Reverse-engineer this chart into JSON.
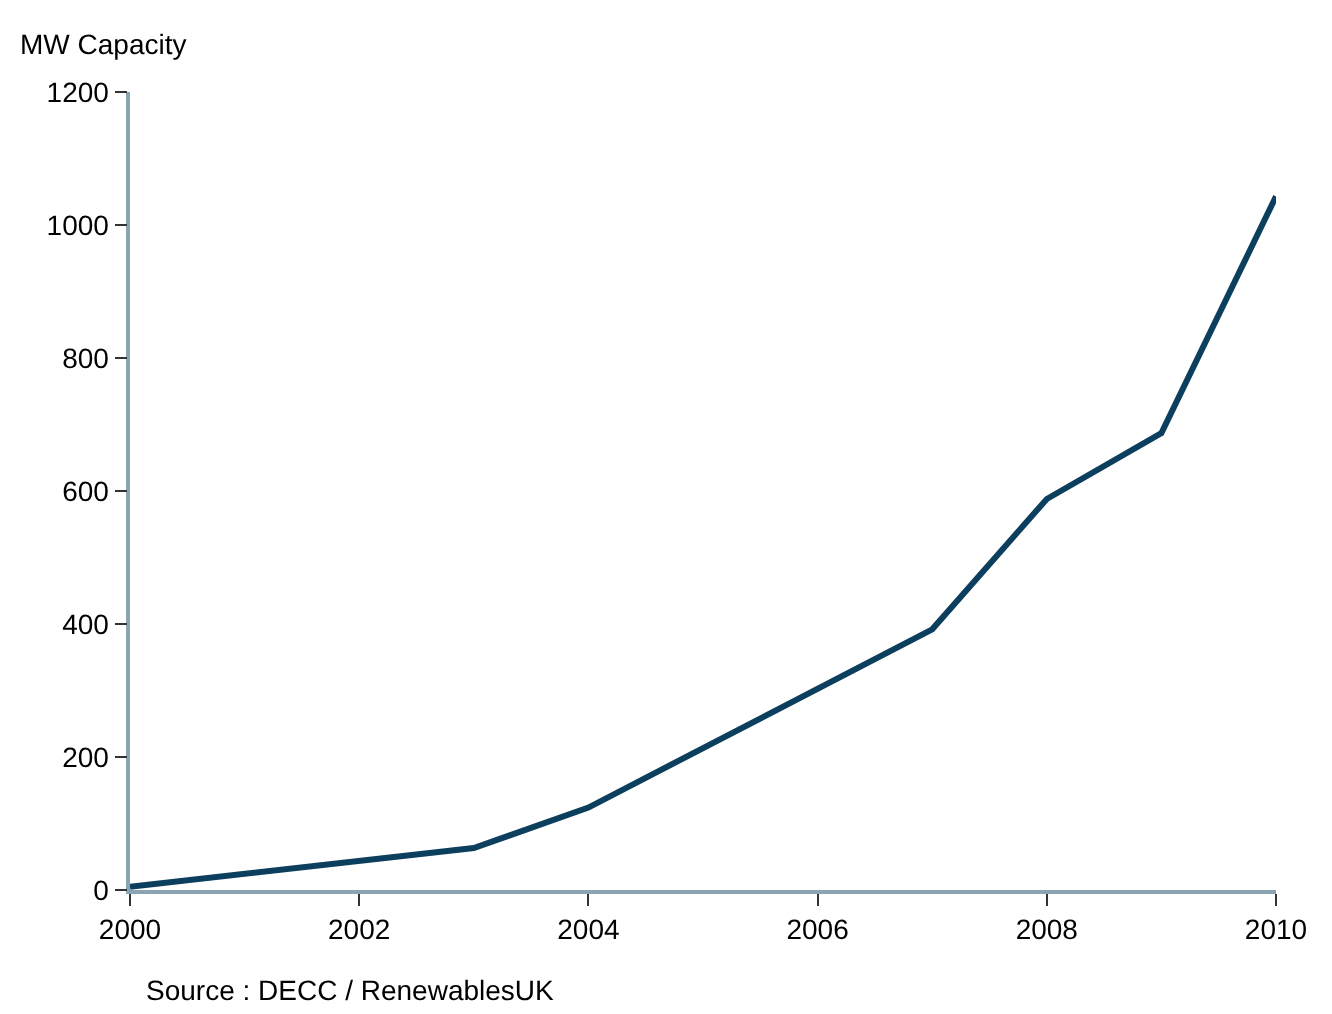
{
  "chart_data": {
    "type": "line",
    "ylabel": "MW Capacity",
    "x": [
      2000,
      2003,
      2004,
      2007,
      2008,
      2009,
      2010
    ],
    "series": [
      {
        "color": "#0c3f5e",
        "values": [
          5,
          63,
          124,
          392,
          588,
          687,
          1043
        ]
      }
    ],
    "xlim": [
      2000,
      2010
    ],
    "xticks": [
      2000,
      2002,
      2004,
      2006,
      2008,
      2010
    ],
    "ylim": [
      0,
      1200
    ],
    "yticks": [
      0,
      200,
      400,
      600,
      800,
      1000,
      1200
    ],
    "marker": "none",
    "line_style": "solid",
    "annotations": [
      "Source : DECC / RenewablesUK"
    ]
  }
}
